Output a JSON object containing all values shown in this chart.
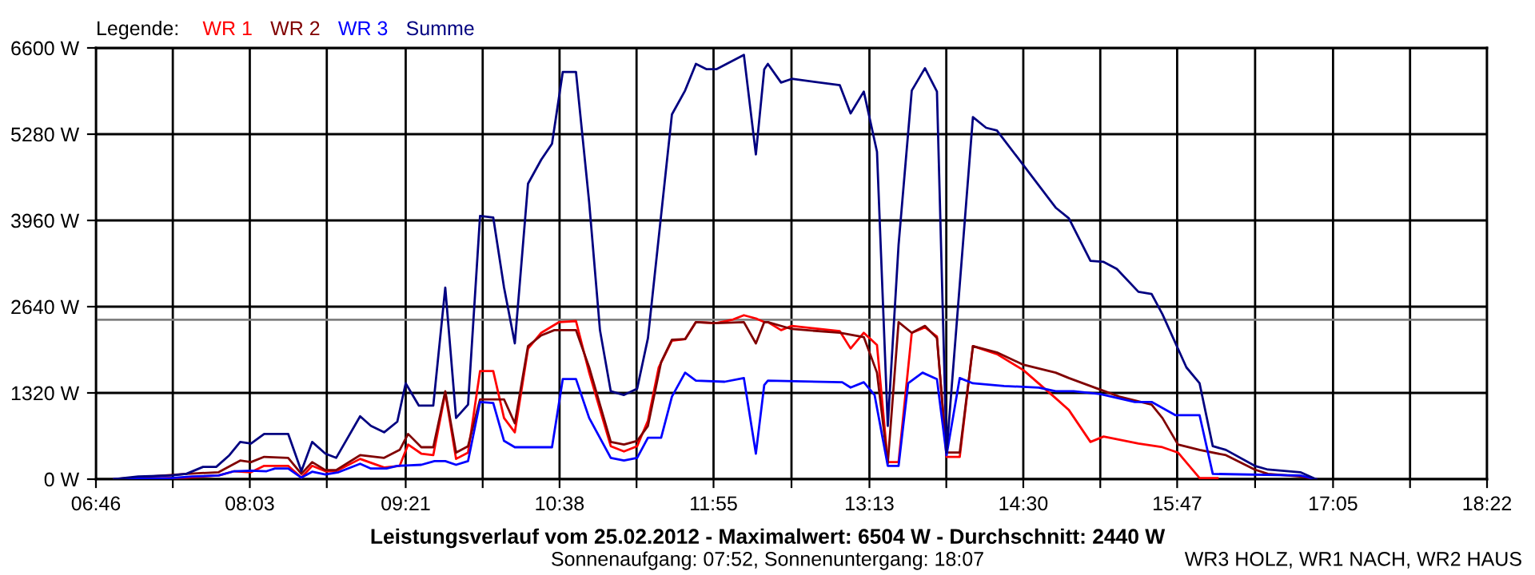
{
  "chart_data": {
    "type": "line",
    "title": "Leistungsverlauf vom 25.02.2012 - Maximalwert: 6504 W - Durchschnitt: 2440 W",
    "subtitle": "Sonnenaufgang: 07:52, Sonnenuntergang: 18:07",
    "legend_title": "Legende:",
    "annotations": [
      "WR3 HOLZ, WR1 NACH, WR2 HAUS"
    ],
    "legend": "top left",
    "grid": true,
    "line_style": "solid",
    "marker": "none",
    "xlim": [
      6.767,
      18.367
    ],
    "xticks": [
      {
        "value": 6.767,
        "label": "06:46"
      },
      {
        "value": 7.408,
        "label": null
      },
      {
        "value": 8.05,
        "label": "08:03"
      },
      {
        "value": 8.692,
        "label": null
      },
      {
        "value": 9.35,
        "label": "09:21"
      },
      {
        "value": 9.992,
        "label": null
      },
      {
        "value": 10.633,
        "label": "10:38"
      },
      {
        "value": 11.275,
        "label": null
      },
      {
        "value": 11.917,
        "label": "11:55"
      },
      {
        "value": 12.567,
        "label": null
      },
      {
        "value": 13.217,
        "label": "13:13"
      },
      {
        "value": 13.858,
        "label": null
      },
      {
        "value": 14.5,
        "label": "14:30"
      },
      {
        "value": 15.142,
        "label": null
      },
      {
        "value": 15.783,
        "label": "15:47"
      },
      {
        "value": 16.433,
        "label": null
      },
      {
        "value": 17.083,
        "label": "17:05"
      },
      {
        "value": 17.725,
        "label": null
      },
      {
        "value": 18.367,
        "label": "18:22"
      }
    ],
    "ylim": [
      0,
      6600
    ],
    "yticks": [
      {
        "value": 0,
        "label": "0 W"
      },
      {
        "value": 1320,
        "label": "1320 W"
      },
      {
        "value": 2640,
        "label": "2640 W"
      },
      {
        "value": 3960,
        "label": "3960 W"
      },
      {
        "value": 5280,
        "label": "5280 W"
      },
      {
        "value": 6600,
        "label": "6600 W"
      }
    ],
    "ref_lines": [
      {
        "axis": "y",
        "value": 2440,
        "label": null,
        "color": "#808080"
      }
    ],
    "series": [
      {
        "name": "WR 1",
        "color": "#ff0000",
        "x": [
          6.92,
          7.52,
          7.79,
          7.92,
          8.06,
          8.17,
          8.37,
          8.48,
          8.57,
          8.68,
          8.77,
          8.97,
          9.17,
          9.3,
          9.37,
          9.48,
          9.58,
          9.68,
          9.77,
          9.87,
          9.97,
          10.08,
          10.17,
          10.26,
          10.37,
          10.48,
          10.63,
          10.77,
          10.88,
          11.06,
          11.17,
          11.28,
          11.37,
          11.46,
          11.57,
          11.68,
          11.77,
          11.94,
          12.08,
          12.17,
          12.27,
          12.34,
          12.37,
          12.48,
          12.57,
          12.97,
          13.06,
          13.17,
          13.28,
          13.37,
          13.46,
          13.57,
          13.68,
          13.78,
          13.86,
          13.97,
          14.08,
          14.28,
          14.5,
          14.77,
          14.88,
          15.06,
          15.17,
          15.46,
          15.66,
          15.79,
          15.97,
          16.12
        ],
        "values": [
          0,
          24,
          57,
          122,
          106,
          204,
          204,
          24,
          204,
          122,
          122,
          310,
          179,
          204,
          530,
          391,
          367,
          1320,
          310,
          407,
          1654,
          1654,
          937,
          717,
          1996,
          2240,
          2404,
          2420,
          1630,
          505,
          424,
          505,
          896,
          1711,
          2118,
          2143,
          2404,
          2387,
          2444,
          2509,
          2460,
          2404,
          2404,
          2281,
          2346,
          2265,
          2000,
          2240,
          2053,
          261,
          261,
          2240,
          2322,
          2183,
          342,
          342,
          2037,
          1915,
          1670,
          1239,
          1059,
          570,
          652,
          546,
          489,
          407,
          16,
          16
        ]
      },
      {
        "name": "WR 2",
        "color": "#800000",
        "x": [
          6.92,
          7.34,
          7.52,
          7.79,
          7.97,
          8.06,
          8.17,
          8.37,
          8.48,
          8.57,
          8.68,
          8.77,
          8.97,
          9.17,
          9.3,
          9.37,
          9.48,
          9.58,
          9.68,
          9.77,
          9.87,
          9.97,
          10.17,
          10.26,
          10.37,
          10.48,
          10.59,
          10.77,
          10.88,
          11.06,
          11.17,
          11.28,
          11.37,
          11.48,
          11.57,
          11.68,
          11.77,
          11.94,
          12.17,
          12.27,
          12.34,
          12.37,
          12.57,
          12.97,
          13.17,
          13.28,
          13.37,
          13.46,
          13.57,
          13.68,
          13.78,
          13.86,
          13.97,
          14.08,
          14.28,
          14.5,
          14.77,
          14.88,
          15.06,
          15.3,
          15.57,
          15.66,
          15.79,
          15.97,
          16.19,
          16.43,
          16.54,
          16.81,
          16.94
        ],
        "values": [
          0,
          57,
          81,
          106,
          285,
          261,
          342,
          326,
          81,
          261,
          139,
          139,
          367,
          326,
          448,
          692,
          489,
          489,
          1345,
          407,
          505,
          1222,
          1222,
          855,
          2037,
          2200,
          2281,
          2281,
          1711,
          570,
          530,
          586,
          815,
          1793,
          2134,
          2143,
          2404,
          2387,
          2404,
          2078,
          2404,
          2404,
          2298,
          2240,
          2175,
          1630,
          244,
          2404,
          2240,
          2346,
          2159,
          407,
          407,
          2037,
          1939,
          1752,
          1630,
          1548,
          1426,
          1263,
          1141,
          937,
          530,
          448,
          367,
          147,
          81,
          41,
          0
        ]
      },
      {
        "name": "WR 3",
        "color": "#0000ff",
        "x": [
          6.92,
          7.39,
          7.57,
          7.79,
          7.92,
          8.06,
          8.19,
          8.26,
          8.37,
          8.48,
          8.57,
          8.68,
          8.79,
          8.97,
          9.06,
          9.19,
          9.28,
          9.48,
          9.59,
          9.68,
          9.77,
          9.87,
          9.97,
          10.08,
          10.17,
          10.26,
          10.57,
          10.66,
          10.77,
          10.88,
          11.06,
          11.17,
          11.28,
          11.37,
          11.48,
          11.57,
          11.68,
          11.77,
          12.01,
          12.17,
          12.27,
          12.34,
          12.37,
          12.99,
          13.06,
          13.17,
          13.26,
          13.37,
          13.46,
          13.54,
          13.66,
          13.78,
          13.86,
          13.97,
          14.08,
          14.34,
          14.63,
          14.77,
          14.92,
          15.14,
          15.43,
          15.57,
          15.77,
          15.97,
          16.08,
          16.81,
          16.94
        ],
        "values": [
          0,
          16,
          41,
          57,
          122,
          130,
          122,
          163,
          163,
          24,
          114,
          73,
          106,
          236,
          163,
          163,
          204,
          220,
          277,
          277,
          220,
          277,
          1181,
          1165,
          586,
          489,
          489,
          1532,
          1532,
          937,
          326,
          285,
          326,
          635,
          635,
          1263,
          1630,
          1508,
          1491,
          1548,
          391,
          1442,
          1508,
          1483,
          1402,
          1483,
          1288,
          204,
          204,
          1467,
          1630,
          1532,
          367,
          1548,
          1467,
          1426,
          1402,
          1345,
          1345,
          1304,
          1182,
          1182,
          978,
          978,
          81,
          57,
          0
        ]
      },
      {
        "name": "Summe",
        "color": "#000080",
        "x": [
          6.92,
          7.12,
          7.39,
          7.52,
          7.66,
          7.77,
          7.88,
          7.97,
          8.06,
          8.17,
          8.37,
          8.48,
          8.57,
          8.68,
          8.77,
          8.97,
          9.06,
          9.17,
          9.28,
          9.35,
          9.46,
          9.58,
          9.68,
          9.77,
          9.87,
          9.97,
          10.08,
          10.17,
          10.26,
          10.37,
          10.48,
          10.57,
          10.66,
          10.77,
          10.88,
          10.97,
          11.06,
          11.17,
          11.28,
          11.37,
          11.57,
          11.68,
          11.77,
          11.86,
          11.94,
          12.17,
          12.27,
          12.34,
          12.37,
          12.48,
          12.57,
          12.97,
          13.06,
          13.17,
          13.28,
          13.37,
          13.46,
          13.57,
          13.68,
          13.78,
          13.86,
          14.08,
          14.19,
          14.28,
          14.5,
          14.77,
          14.88,
          15.06,
          15.17,
          15.28,
          15.46,
          15.57,
          15.66,
          15.86,
          15.97,
          16.08,
          16.19,
          16.43,
          16.54,
          16.81,
          16.94
        ],
        "values": [
          0,
          41,
          57,
          81,
          188,
          188,
          367,
          570,
          546,
          693,
          693,
          122,
          570,
          391,
          326,
          962,
          815,
          717,
          880,
          1467,
          1125,
          1125,
          2933,
          937,
          1141,
          4029,
          4005,
          2933,
          2078,
          4522,
          4889,
          5134,
          6233,
          6233,
          4237,
          2281,
          1345,
          1288,
          1385,
          2159,
          5582,
          5948,
          6356,
          6274,
          6274,
          6494,
          4970,
          6274,
          6356,
          6070,
          6127,
          6029,
          5597,
          5932,
          5012,
          815,
          3585,
          5948,
          6290,
          5932,
          407,
          5541,
          5378,
          5337,
          4808,
          4156,
          3993,
          3341,
          3325,
          3218,
          2868,
          2835,
          2525,
          1711,
          1467,
          505,
          448,
          204,
          147,
          106,
          0
        ]
      }
    ]
  }
}
